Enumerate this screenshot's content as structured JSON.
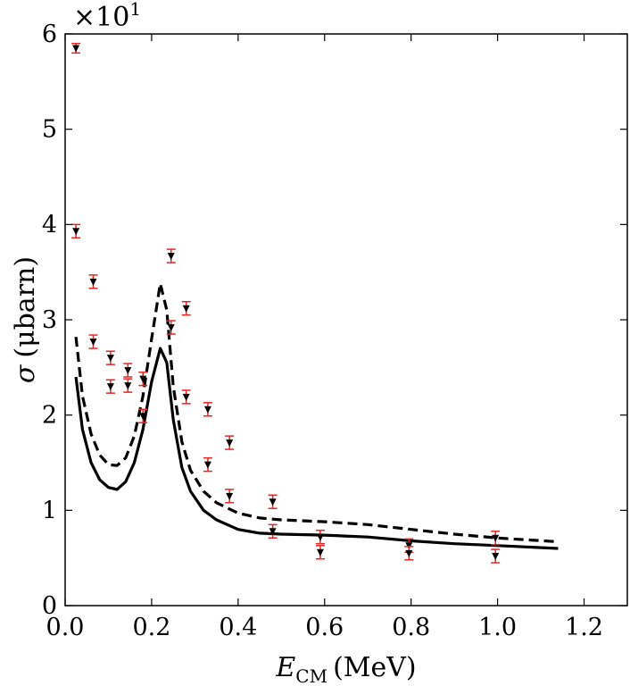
{
  "chart_data": {
    "type": "line",
    "title": "",
    "xlabel_main": "E",
    "xlabel_sub": "CM",
    "xlabel_unit": "(MeV)",
    "ylabel_symbol": "σ",
    "ylabel_unit": "(μbarn)",
    "y_offset_text": "×10",
    "y_offset_exp": "1",
    "xlim": [
      0.0,
      1.3
    ],
    "ylim": [
      0,
      6
    ],
    "x_ticks": [
      0.0,
      0.2,
      0.4,
      0.6,
      0.8,
      1.0,
      1.2
    ],
    "x_tick_labels": [
      "0.0",
      "0.2",
      "0.4",
      "0.6",
      "0.8",
      "1.0",
      "1.2"
    ],
    "y_ticks": [
      0,
      1,
      2,
      3,
      4,
      5,
      6
    ],
    "y_tick_labels": [
      "0",
      "1",
      "2",
      "3",
      "4",
      "5",
      "6"
    ],
    "grid": false,
    "series": [
      {
        "name": "solid curve",
        "style": "solid",
        "color": "#000000",
        "x": [
          0.025,
          0.04,
          0.06,
          0.08,
          0.1,
          0.12,
          0.14,
          0.16,
          0.18,
          0.2,
          0.22,
          0.235,
          0.25,
          0.27,
          0.29,
          0.32,
          0.35,
          0.4,
          0.45,
          0.5,
          0.6,
          0.7,
          0.8,
          0.9,
          1.0,
          1.14
        ],
        "y": [
          2.4,
          1.85,
          1.5,
          1.32,
          1.24,
          1.22,
          1.3,
          1.5,
          1.85,
          2.35,
          2.7,
          2.55,
          1.95,
          1.45,
          1.2,
          1.0,
          0.9,
          0.8,
          0.76,
          0.75,
          0.74,
          0.72,
          0.68,
          0.65,
          0.63,
          0.6
        ]
      },
      {
        "name": "dashed curve",
        "style": "dashed",
        "color": "#000000",
        "x": [
          0.025,
          0.04,
          0.06,
          0.08,
          0.1,
          0.12,
          0.14,
          0.16,
          0.18,
          0.2,
          0.22,
          0.235,
          0.25,
          0.27,
          0.29,
          0.32,
          0.35,
          0.4,
          0.45,
          0.5,
          0.6,
          0.7,
          0.8,
          0.9,
          1.0,
          1.14
        ],
        "y": [
          2.82,
          2.2,
          1.8,
          1.58,
          1.48,
          1.47,
          1.55,
          1.78,
          2.2,
          2.8,
          3.38,
          3.1,
          2.3,
          1.72,
          1.42,
          1.2,
          1.08,
          0.97,
          0.92,
          0.9,
          0.88,
          0.85,
          0.8,
          0.75,
          0.71,
          0.67
        ]
      }
    ],
    "data_points": {
      "marker": "triangle-down",
      "marker_color": "#000000",
      "error_color": "#e32626",
      "points": [
        {
          "x": 0.025,
          "y": 5.85,
          "err": 0.05
        },
        {
          "x": 0.025,
          "y": 3.93,
          "err": 0.07
        },
        {
          "x": 0.065,
          "y": 3.4,
          "err": 0.07
        },
        {
          "x": 0.065,
          "y": 2.77,
          "err": 0.07
        },
        {
          "x": 0.105,
          "y": 2.6,
          "err": 0.07
        },
        {
          "x": 0.105,
          "y": 2.3,
          "err": 0.07
        },
        {
          "x": 0.145,
          "y": 2.47,
          "err": 0.07
        },
        {
          "x": 0.145,
          "y": 2.31,
          "err": 0.07
        },
        {
          "x": 0.18,
          "y": 2.38,
          "err": 0.07
        },
        {
          "x": 0.18,
          "y": 1.99,
          "err": 0.07
        },
        {
          "x": 0.245,
          "y": 3.67,
          "err": 0.07
        },
        {
          "x": 0.245,
          "y": 2.92,
          "err": 0.07
        },
        {
          "x": 0.28,
          "y": 3.12,
          "err": 0.07
        },
        {
          "x": 0.28,
          "y": 2.19,
          "err": 0.07
        },
        {
          "x": 0.33,
          "y": 2.06,
          "err": 0.07
        },
        {
          "x": 0.33,
          "y": 1.48,
          "err": 0.07
        },
        {
          "x": 0.38,
          "y": 1.71,
          "err": 0.07
        },
        {
          "x": 0.38,
          "y": 1.15,
          "err": 0.07
        },
        {
          "x": 0.48,
          "y": 1.09,
          "err": 0.07
        },
        {
          "x": 0.48,
          "y": 0.78,
          "err": 0.07
        },
        {
          "x": 0.59,
          "y": 0.72,
          "err": 0.07
        },
        {
          "x": 0.59,
          "y": 0.56,
          "err": 0.07
        },
        {
          "x": 0.795,
          "y": 0.63,
          "err": 0.07
        },
        {
          "x": 0.795,
          "y": 0.55,
          "err": 0.07
        },
        {
          "x": 0.995,
          "y": 0.71,
          "err": 0.07
        },
        {
          "x": 0.995,
          "y": 0.52,
          "err": 0.07
        }
      ]
    }
  }
}
